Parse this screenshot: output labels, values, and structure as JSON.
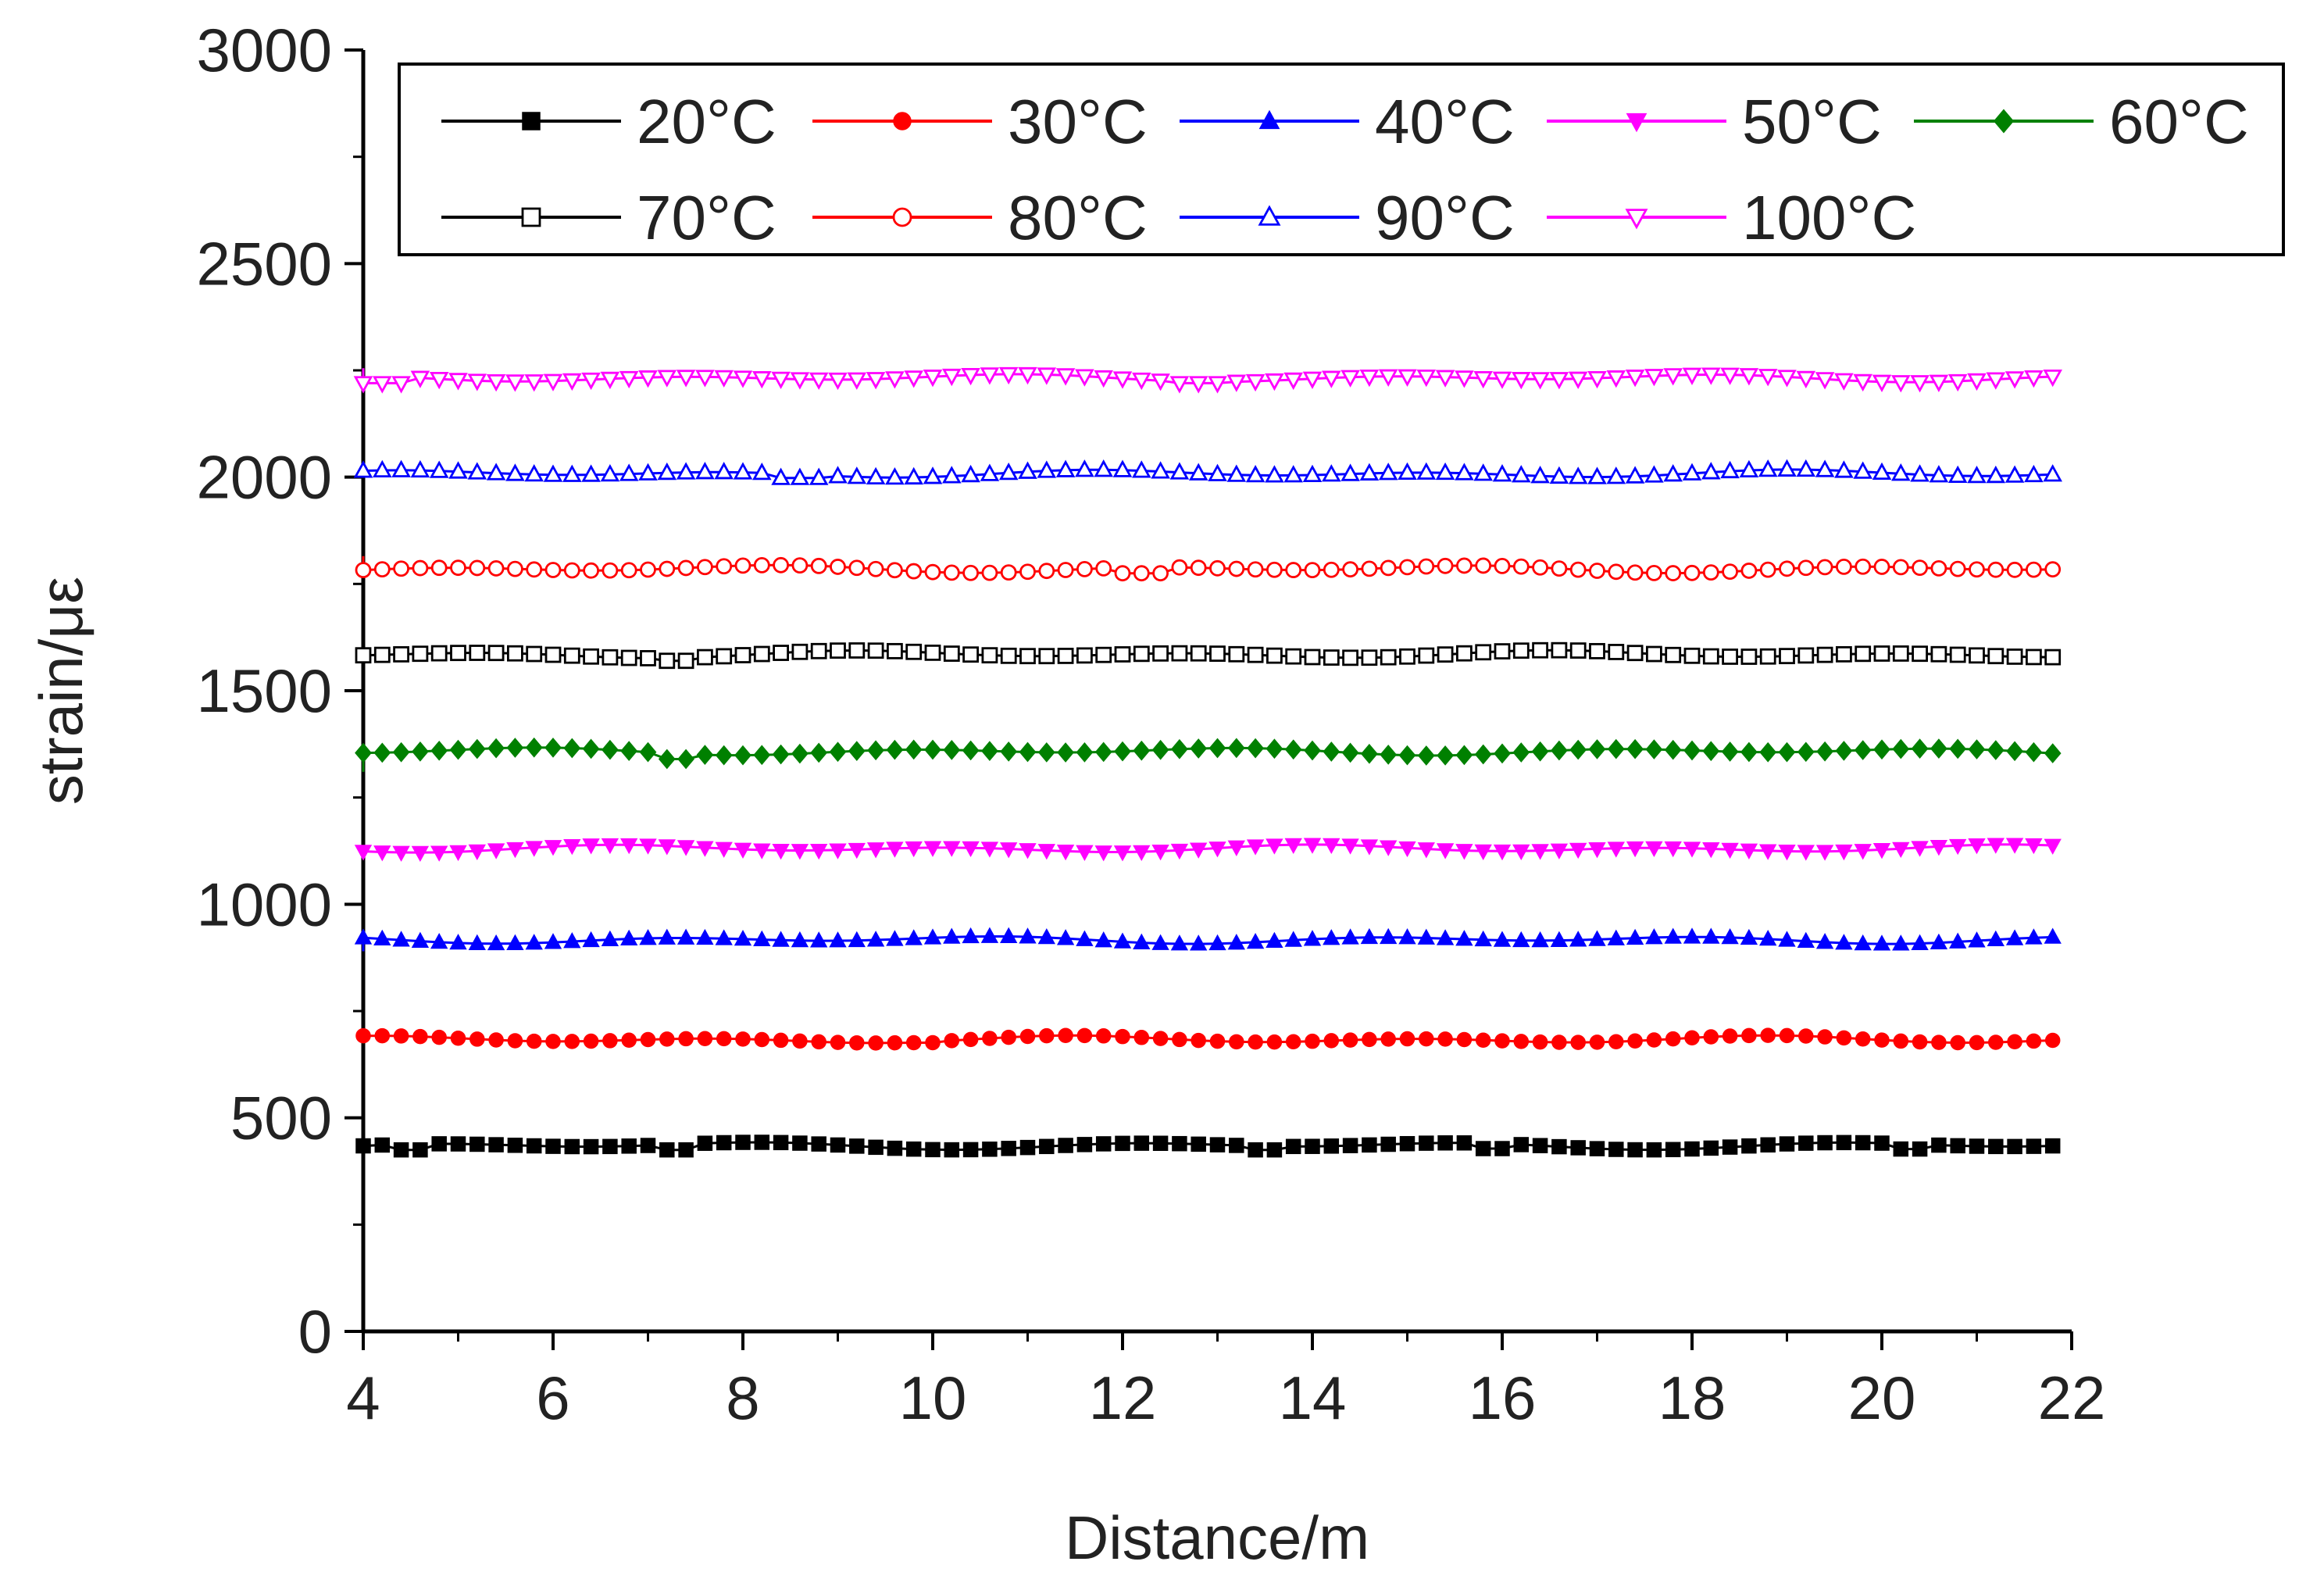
{
  "chart_data": {
    "type": "line",
    "title": "",
    "xlabel": "Distance/m",
    "ylabel": "strain/με",
    "xlim": [
      4,
      22
    ],
    "ylim": [
      0,
      3000
    ],
    "xticks": [
      4,
      6,
      8,
      10,
      12,
      14,
      16,
      18,
      20,
      22
    ],
    "yticks": [
      0,
      500,
      1000,
      1500,
      2000,
      2500,
      3000
    ],
    "xtick_labels": [
      "4",
      "6",
      "8",
      "10",
      "12",
      "14",
      "16",
      "18",
      "20",
      "22"
    ],
    "ytick_labels": [
      "0",
      "500",
      "1000",
      "1500",
      "2000",
      "2500",
      "3000"
    ],
    "grid": false,
    "legend_position": "top",
    "x_range": [
      4.0,
      21.9
    ],
    "x_step": 0.2,
    "series": [
      {
        "name": "20°C",
        "color": "#000000",
        "marker": "square",
        "filled": true,
        "start_value": 445,
        "level": 435,
        "dip_at": [
          [
            4.5,
            425
          ],
          [
            7.3,
            425
          ],
          [
            13.5,
            425
          ],
          [
            15.9,
            428
          ],
          [
            20.3,
            427
          ]
        ]
      },
      {
        "name": "30°C",
        "color": "#ff0000",
        "marker": "circle",
        "filled": true,
        "start_value": 690,
        "level": 683,
        "dip_at": [
          [
            9.9,
            676
          ]
        ]
      },
      {
        "name": "40°C",
        "color": "#0000ff",
        "marker": "triangle-up",
        "filled": true,
        "start_value": 890,
        "level": 917,
        "dip_at": []
      },
      {
        "name": "50°C",
        "color": "#ff00ff",
        "marker": "triangle-down",
        "filled": true,
        "start_value": 1110,
        "level": 1130,
        "dip_at": []
      },
      {
        "name": "60°C",
        "color": "#008000",
        "marker": "diamond",
        "filled": true,
        "start_value": 1310,
        "level": 1358,
        "dip_at": [
          [
            7.3,
            1340
          ]
        ]
      },
      {
        "name": "70°C",
        "color": "#000000",
        "marker": "square",
        "filled": false,
        "start_value": 1535,
        "level": 1585,
        "dip_at": [
          [
            7.3,
            1570
          ]
        ]
      },
      {
        "name": "80°C",
        "color": "#ff0000",
        "marker": "circle",
        "filled": false,
        "start_value": 1815,
        "level": 1785,
        "dip_at": [
          [
            12.2,
            1775
          ]
        ]
      },
      {
        "name": "90°C",
        "color": "#0000ff",
        "marker": "triangle-up",
        "filled": false,
        "start_value": 2015,
        "level": 2008,
        "dip_at": [
          [
            8.6,
            1998
          ]
        ]
      },
      {
        "name": "100°C",
        "color": "#ff00ff",
        "marker": "triangle-down",
        "filled": false,
        "start_value": 2255,
        "level": 2232,
        "dip_at": [
          [
            4.2,
            2220
          ],
          [
            12.8,
            2220
          ]
        ]
      }
    ]
  }
}
